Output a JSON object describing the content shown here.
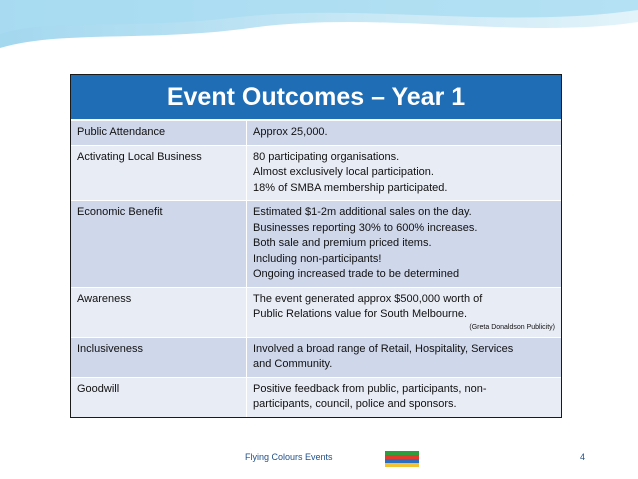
{
  "title": "Event Outcomes – Year 1",
  "table": {
    "rows": [
      {
        "label": "Public Attendance",
        "lines": [
          "Approx 25,000."
        ]
      },
      {
        "label": "Activating Local Business",
        "lines": [
          "80 participating organisations.",
          "Almost exclusively local participation.",
          "18% of SMBA membership participated."
        ]
      },
      {
        "label": "Economic Benefit",
        "lines": [
          "Estimated $1-2m additional sales on the day.",
          "Businesses reporting 30% to 600% increases.",
          "Both sale and premium priced items.",
          "Including non-participants!",
          "Ongoing increased trade to be determined"
        ]
      },
      {
        "label": "Awareness",
        "lines": [
          "The event generated approx $500,000 worth of",
          "Public Relations value for South Melbourne."
        ],
        "note": "(Greta Donaldson Publicity)"
      },
      {
        "label": "Inclusiveness",
        "lines": [
          "Involved a broad range of Retail, Hospitality, Services",
          "and Community."
        ]
      },
      {
        "label": "Goodwill",
        "lines": [
          "Positive feedback from public, participants, non-",
          "participants, council, police and sponsors."
        ]
      }
    ]
  },
  "footer": {
    "text": "Flying Colours Events",
    "page": "4"
  }
}
